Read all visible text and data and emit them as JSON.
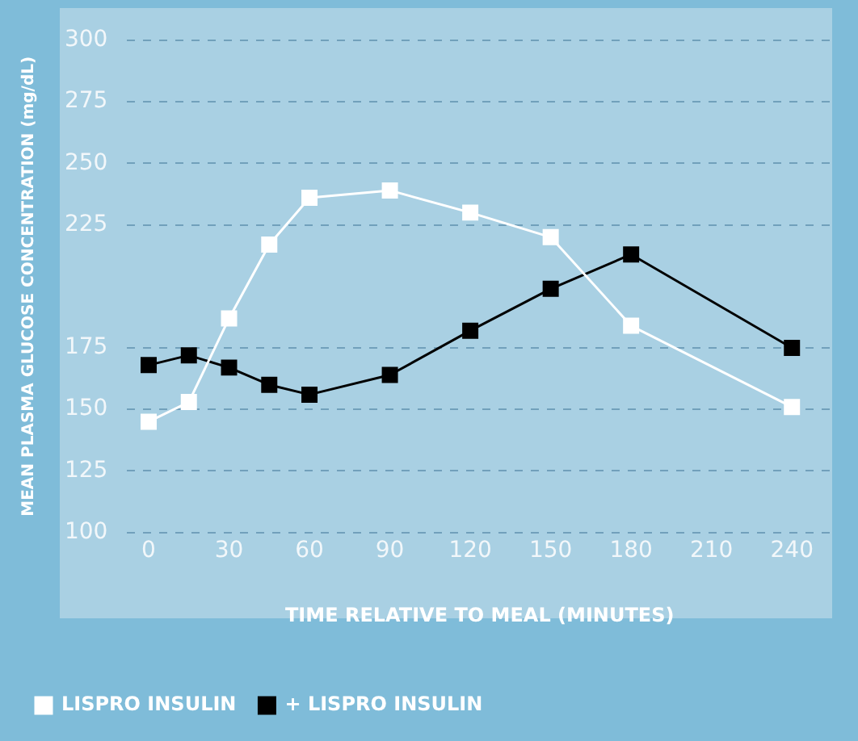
{
  "chart_data": {
    "type": "line",
    "xlabel": "TIME RELATIVE TO MEAL (MINUTES)",
    "ylabel": "MEAN PLASMA GLUCOSE CONCENTRATION (mg/dL)",
    "x": [
      0,
      15,
      30,
      45,
      60,
      90,
      120,
      150,
      180,
      240
    ],
    "series": [
      {
        "name": "LISPRO INSULIN",
        "color": "#ffffff",
        "values": [
          145,
          153,
          187,
          217,
          236,
          239,
          230,
          220,
          184,
          151
        ]
      },
      {
        "name": "+ LISPRO INSULIN",
        "color": "#000000",
        "values": [
          168,
          172,
          167,
          160,
          156,
          164,
          182,
          199,
          213,
          175
        ]
      }
    ],
    "xlim": [
      -8,
      255
    ],
    "xticks": [
      0,
      30,
      60,
      90,
      120,
      150,
      180,
      210,
      240
    ],
    "ylim": [
      100,
      300
    ],
    "yticks": [
      100,
      125,
      150,
      175,
      225,
      250,
      275,
      300
    ],
    "grid": "y",
    "legend": "bottom",
    "marker": "square",
    "line_style": "solid"
  }
}
